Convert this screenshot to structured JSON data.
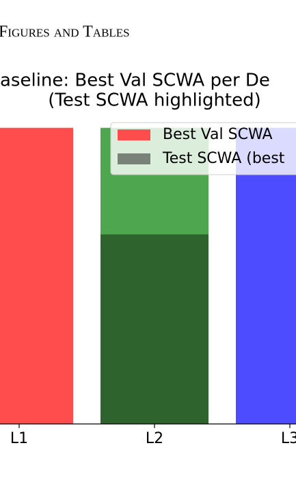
{
  "header": {
    "section": "Figures and Tables"
  },
  "chart_data": {
    "type": "bar",
    "title": [
      "aseline: Best Val SCWA per De",
      "(Test SCWA highlighted)"
    ],
    "categories": [
      "L1",
      "L2",
      "L3"
    ],
    "series": [
      {
        "name": "Best Val SCWA",
        "colors": [
          "#ff4d4d",
          "#4ea64e",
          "#4d4dff"
        ],
        "values": [
          1.0,
          1.0,
          1.0
        ]
      },
      {
        "name": "Test SCWA (best",
        "color": "#000000",
        "values": [
          null,
          0.64,
          null
        ]
      }
    ],
    "ylim": [
      0,
      1.05
    ]
  }
}
